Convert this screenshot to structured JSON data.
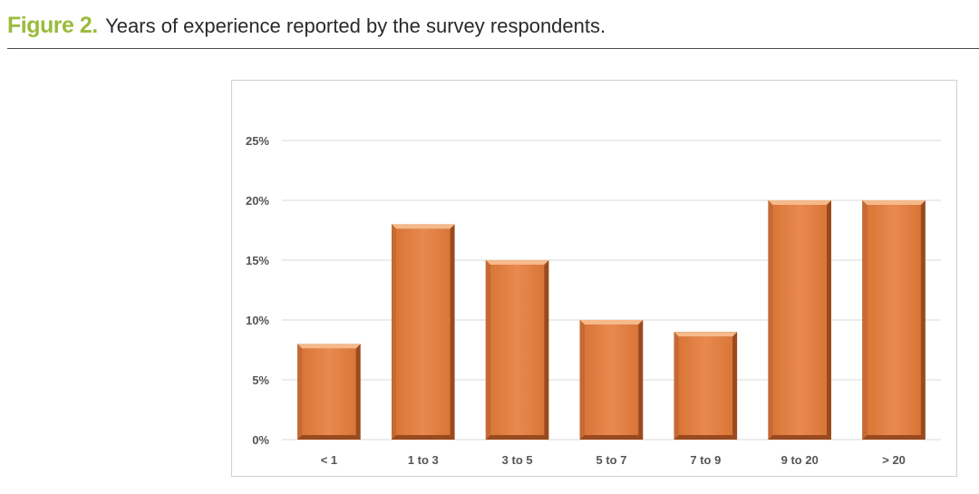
{
  "caption": {
    "label": "Figure 2.",
    "text": "Years of experience reported by the survey respondents."
  },
  "colors": {
    "bar": "#e8874f",
    "bar_dark": "#9a4a1e",
    "bar_light": "#f6b98a",
    "grid": "#d9d9d9",
    "caption_label": "#9bbb3c"
  },
  "chart_data": {
    "type": "bar",
    "title": "",
    "xlabel": "",
    "ylabel": "",
    "categories": [
      "< 1",
      "1 to 3",
      "3 to 5",
      "5 to 7",
      "7 to 9",
      "9 to 20",
      "> 20"
    ],
    "values": [
      8,
      18,
      15,
      10,
      9,
      20,
      20
    ],
    "value_unit": "%",
    "ylim": [
      0,
      25
    ],
    "yticks": [
      "0%",
      "5%",
      "10%",
      "15%",
      "20%",
      "25%"
    ],
    "grid": true,
    "legend": "none"
  }
}
